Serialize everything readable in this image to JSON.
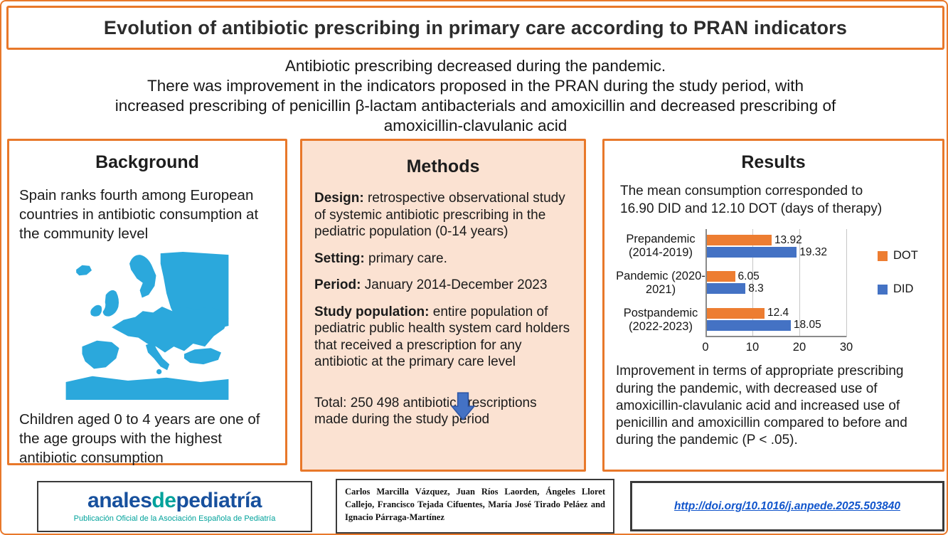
{
  "header": {
    "title": "Evolution of antibiotic prescribing in primary care according to PRAN indicators"
  },
  "summary": {
    "lines": [
      "Antibiotic prescribing decreased during the pandemic.",
      "There was improvement in the indicators proposed in the PRAN during the study period, with",
      "increased prescribing of penicillin β-lactam antibacterials and amoxicillin and decreased prescribing of",
      "amoxicillin-clavulanic acid"
    ]
  },
  "background": {
    "heading": "Background",
    "para1": "Spain ranks fourth among European countries in antibiotic consumption at the community level",
    "para2": "Children aged 0 to 4 years are one of the age groups with the highest antibiotic consumption",
    "map_icon": "europe-map"
  },
  "methods": {
    "heading": "Methods",
    "items": [
      {
        "label": "Design:",
        "text": " retrospective observational study of systemic antibiotic prescribing in the pediatric population (0-14 years)"
      },
      {
        "label": "Setting:",
        "text": " primary care."
      },
      {
        "label": "Period:",
        "text": " January 2014-December 2023"
      },
      {
        "label": "Study population:",
        "text": " entire population of pediatric public health system card holders that received a prescription for any antibiotic at the primary care level"
      }
    ],
    "arrow_icon": "down-arrow",
    "total": "Total: 250 498 antibiotic prescriptions made during the study period"
  },
  "results": {
    "heading": "Results",
    "intro_lines": [
      "The mean consumption corresponded to",
      "16.90 DID and 12.10 DOT (days of therapy)"
    ],
    "conclusion": "Improvement in terms of appropriate prescribing during the pandemic, with decreased use of amoxicillin-clavulanic acid and increased use of penicillin and amoxicillin compared to before and during the pandemic (P < .05)."
  },
  "chart_data": {
    "type": "bar",
    "orientation": "horizontal",
    "title": "",
    "xlabel": "",
    "ylabel": "",
    "categories": [
      "Prepandemic (2014-2019)",
      "Pandemic (2020-2021)",
      "Postpandemic (2022-2023)"
    ],
    "series": [
      {
        "name": "DOT",
        "color": "#ED7D31",
        "values": [
          13.92,
          6.05,
          12.4
        ],
        "labels": [
          "13.92",
          "6.05",
          "12.4"
        ]
      },
      {
        "name": "DID",
        "color": "#4472C4",
        "values": [
          19.32,
          8.3,
          18.05
        ],
        "labels": [
          "19.32",
          "8.3",
          "18.05"
        ]
      }
    ],
    "xlim": [
      0,
      30
    ],
    "xticks": [
      0,
      10,
      20,
      30
    ],
    "legend_position": "right",
    "grid": true
  },
  "footer": {
    "journal": {
      "logo_part1": "anales",
      "logo_part2": "de",
      "logo_part3": "pediatría",
      "subtitle": "Publicación Oficial de la Asociación Española de Pediatría"
    },
    "authors": "Carlos Marcilla Vázquez, Juan Ríos Laorden, Ángeles Lloret Callejo, Francisco Tejada Cifuentes, María José Tirado Peláez and Ignacio Párraga-Martínez",
    "doi": "http://doi.org/10.1016/j.anpede.2025.503840"
  },
  "colors": {
    "accent_orange": "#E8782A",
    "methods_bg": "#FBE2D2",
    "map_blue": "#2BA8DC",
    "dot_orange": "#ED7D31",
    "did_blue": "#4472C4",
    "link_blue": "#1155CC",
    "logo_blue": "#17509D",
    "logo_teal": "#00A29B"
  }
}
